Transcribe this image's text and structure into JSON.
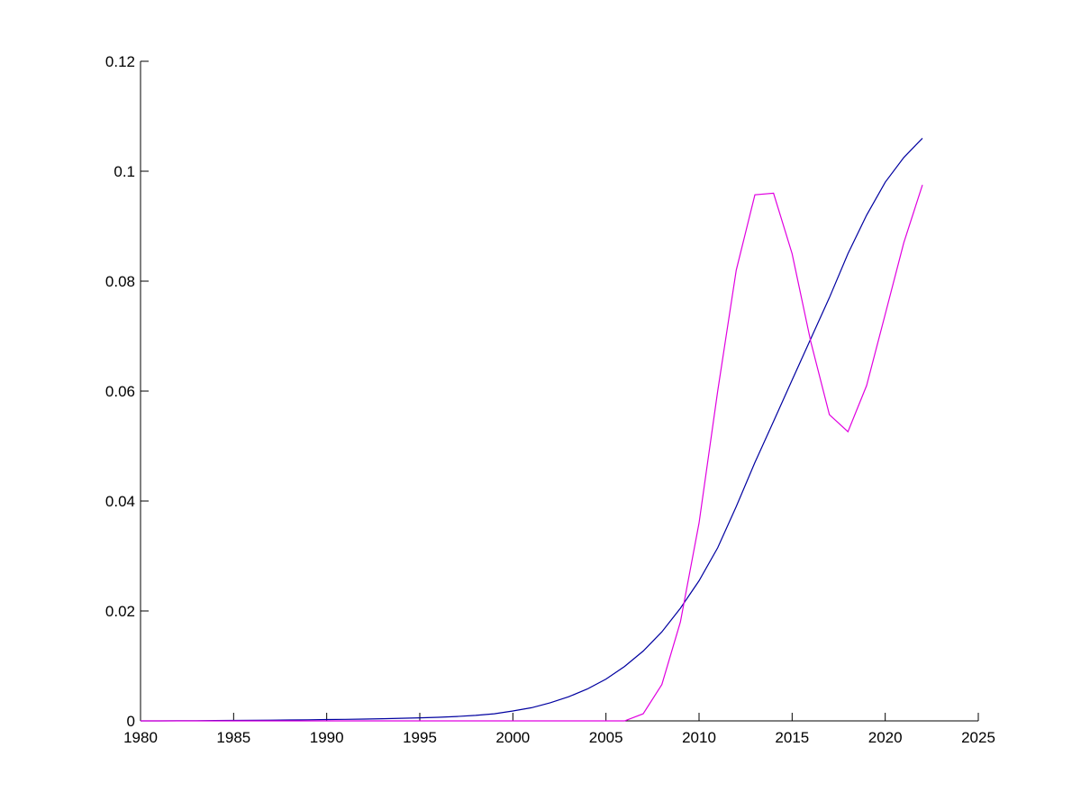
{
  "chart_data": {
    "type": "line",
    "title": "",
    "xlabel": "",
    "ylabel": "",
    "xlim": [
      1980,
      2025
    ],
    "ylim": [
      0,
      0.12
    ],
    "grid": false,
    "xticks": [
      "1980",
      "1985",
      "1990",
      "1995",
      "2000",
      "2005",
      "2010",
      "2015",
      "2020",
      "2025"
    ],
    "yticks": [
      "0",
      "0.02",
      "0.04",
      "0.06",
      "0.08",
      "0.1",
      "0.12"
    ],
    "x": [
      1980,
      1981,
      1982,
      1983,
      1984,
      1985,
      1986,
      1987,
      1988,
      1989,
      1990,
      1991,
      1992,
      1993,
      1994,
      1995,
      1996,
      1997,
      1998,
      1999,
      2000,
      2001,
      2002,
      2003,
      2004,
      2005,
      2006,
      2007,
      2008,
      2009,
      2010,
      2011,
      2012,
      2013,
      2014,
      2015,
      2016,
      2017,
      2018,
      2019,
      2020,
      2021,
      2022
    ],
    "series": [
      {
        "color": "#0000a0",
        "values": [
          0,
          0,
          2e-05,
          4e-05,
          6e-05,
          8e-05,
          0.0001,
          0.00013,
          0.00016,
          0.0002,
          0.00024,
          0.00028,
          0.00033,
          0.0004,
          0.00047,
          0.00055,
          0.00066,
          0.0008,
          0.001,
          0.0013,
          0.0018,
          0.0024,
          0.0033,
          0.0044,
          0.0058,
          0.0076,
          0.0099,
          0.0127,
          0.0162,
          0.0205,
          0.0255,
          0.0315,
          0.039,
          0.047,
          0.0545,
          0.062,
          0.0695,
          0.077,
          0.085,
          0.092,
          0.098,
          0.1025,
          0.106
        ]
      },
      {
        "color": "#e000e0",
        "values": [
          0,
          0,
          0,
          0,
          0,
          0,
          0,
          0,
          0,
          0,
          0,
          0,
          0,
          0,
          0,
          0,
          0,
          0,
          0,
          0,
          0,
          0,
          0,
          0,
          0,
          0,
          0,
          0.0013,
          0.0066,
          0.018,
          0.036,
          0.06,
          0.082,
          0.0957,
          0.096,
          0.085,
          0.069,
          0.0557,
          0.0526,
          0.061,
          0.074,
          0.087,
          0.0975
        ]
      }
    ]
  }
}
